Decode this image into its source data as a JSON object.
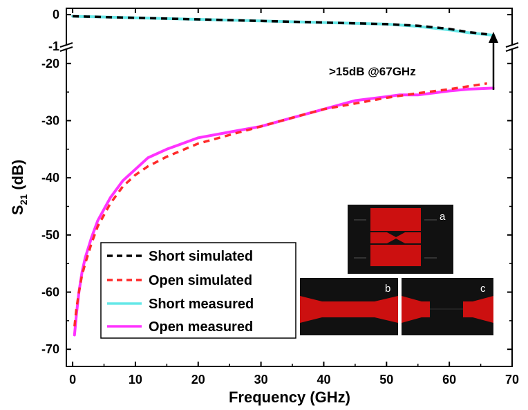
{
  "chart_data": {
    "type": "line",
    "title": "",
    "xlabel": "Frequency (GHz)",
    "ylabel_main": "S",
    "ylabel_sub": "21",
    "ylabel_unit": " (dB)",
    "xlim": [
      -1,
      70
    ],
    "xticks": [
      "0",
      "10",
      "20",
      "30",
      "40",
      "50",
      "60",
      "70"
    ],
    "xtick_values": [
      0,
      10,
      20,
      30,
      40,
      50,
      60,
      70
    ],
    "ylim_upper": [
      -1,
      0.2
    ],
    "ylim_lower": [
      -73,
      -17
    ],
    "yticks_upper": [
      "0",
      "-1"
    ],
    "ytick_values_upper": [
      0,
      -1
    ],
    "yticks_lower": [
      "-20",
      "-30",
      "-40",
      "-50",
      "-60",
      "-70"
    ],
    "ytick_values_lower": [
      -20,
      -30,
      -40,
      -50,
      -60,
      -70
    ],
    "axis_break": true,
    "legend_position": "bottom-left",
    "annotation": ">15dB @67GHz",
    "series": [
      {
        "name": "Short simulated",
        "color": "#000000",
        "style": "dashed",
        "x": [
          0,
          10,
          20,
          30,
          40,
          50,
          55,
          60,
          63,
          66
        ],
        "y": [
          -0.05,
          -0.1,
          -0.15,
          -0.2,
          -0.25,
          -0.3,
          -0.35,
          -0.45,
          -0.55,
          -0.62
        ]
      },
      {
        "name": "Open simulated",
        "color": "#ff2a2a",
        "style": "dashed",
        "x": [
          0.3,
          0.6,
          1,
          1.5,
          2,
          3,
          4,
          5,
          6,
          8,
          10,
          12,
          15,
          20,
          25,
          30,
          35,
          40,
          45,
          50,
          55,
          60,
          63,
          66
        ],
        "y": [
          -66,
          -63,
          -60,
          -57,
          -55,
          -51.5,
          -48.5,
          -46.5,
          -44.5,
          -41.5,
          -39.5,
          -38,
          -36.3,
          -34,
          -32.5,
          -31,
          -29.5,
          -28,
          -27,
          -26,
          -25.2,
          -24.5,
          -24,
          -23.5
        ]
      },
      {
        "name": "Short measured",
        "color": "#66e8e8",
        "style": "solid",
        "x": [
          0,
          10,
          20,
          30,
          40,
          50,
          55,
          60,
          63,
          67
        ],
        "y": [
          -0.05,
          -0.1,
          -0.15,
          -0.2,
          -0.25,
          -0.3,
          -0.37,
          -0.48,
          -0.57,
          -0.65
        ]
      },
      {
        "name": "Open measured",
        "color": "#ff33ff",
        "style": "solid",
        "x": [
          0.3,
          0.6,
          1,
          1.5,
          2,
          3,
          4,
          5,
          6,
          8,
          10,
          12,
          15,
          20,
          25,
          30,
          35,
          40,
          45,
          50,
          52,
          55,
          60,
          63,
          67
        ],
        "y": [
          -67.5,
          -64,
          -60,
          -56.5,
          -54,
          -50.5,
          -47.5,
          -45.5,
          -43.5,
          -40.5,
          -38.5,
          -36.5,
          -35,
          -33,
          -32,
          -31,
          -29.5,
          -28,
          -26.5,
          -25.8,
          -25.5,
          -25.5,
          -24.8,
          -24.5,
          -24.3
        ]
      }
    ],
    "insets": [
      {
        "label": "a"
      },
      {
        "label": "b"
      },
      {
        "label": "c"
      }
    ]
  }
}
